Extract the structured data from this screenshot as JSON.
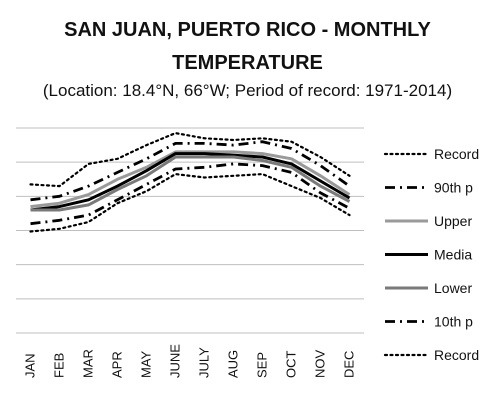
{
  "chart_data": {
    "type": "line",
    "title": "SAN JUAN, PUERTO RICO - MONTHLY",
    "title_line2": "TEMPERATURE",
    "subtitle": "(Location: 18.4°N, 66°W; Period of record: 1971-2014)",
    "xlabel": "",
    "ylabel": "",
    "categories": [
      "JAN",
      "FEB",
      "MAR",
      "APR",
      "MAY",
      "JUNE",
      "JULY",
      "AUG",
      "SEP",
      "OCT",
      "NOV",
      "DEC"
    ],
    "ylim": [
      0,
      6
    ],
    "grid": true,
    "legend_position": "right",
    "series": [
      {
        "name": "Record",
        "style": "dotted",
        "color": "#000000",
        "values": [
          4.35,
          4.3,
          4.95,
          5.1,
          5.5,
          5.85,
          5.7,
          5.65,
          5.7,
          5.6,
          5.15,
          4.6
        ]
      },
      {
        "name": "90th p",
        "style": "dashdot",
        "color": "#000000",
        "values": [
          3.9,
          4.0,
          4.3,
          4.7,
          5.1,
          5.55,
          5.55,
          5.5,
          5.6,
          5.4,
          4.9,
          4.3
        ]
      },
      {
        "name": "Upper",
        "style": "solid-light",
        "color": "#9a9a9a",
        "values": [
          3.7,
          3.8,
          4.05,
          4.5,
          4.85,
          5.3,
          5.3,
          5.3,
          5.25,
          5.1,
          4.6,
          4.05
        ]
      },
      {
        "name": "Media",
        "style": "solid",
        "color": "#000000",
        "values": [
          3.6,
          3.7,
          3.9,
          4.3,
          4.75,
          5.25,
          5.25,
          5.2,
          5.15,
          4.95,
          4.45,
          3.95
        ]
      },
      {
        "name": "Lower",
        "style": "solid-mid",
        "color": "#7a7a7a",
        "values": [
          3.6,
          3.6,
          3.75,
          4.2,
          4.6,
          5.15,
          5.15,
          5.15,
          5.05,
          4.85,
          4.3,
          3.85
        ]
      },
      {
        "name": "10th p",
        "style": "dashdot",
        "color": "#000000",
        "values": [
          3.2,
          3.3,
          3.45,
          3.9,
          4.35,
          4.8,
          4.85,
          4.95,
          4.9,
          4.7,
          4.1,
          3.65
        ]
      },
      {
        "name": "Record",
        "style": "dotted",
        "color": "#000000",
        "values": [
          2.97,
          3.05,
          3.25,
          3.8,
          4.15,
          4.65,
          4.55,
          4.6,
          4.65,
          4.3,
          3.95,
          3.45
        ]
      }
    ]
  }
}
